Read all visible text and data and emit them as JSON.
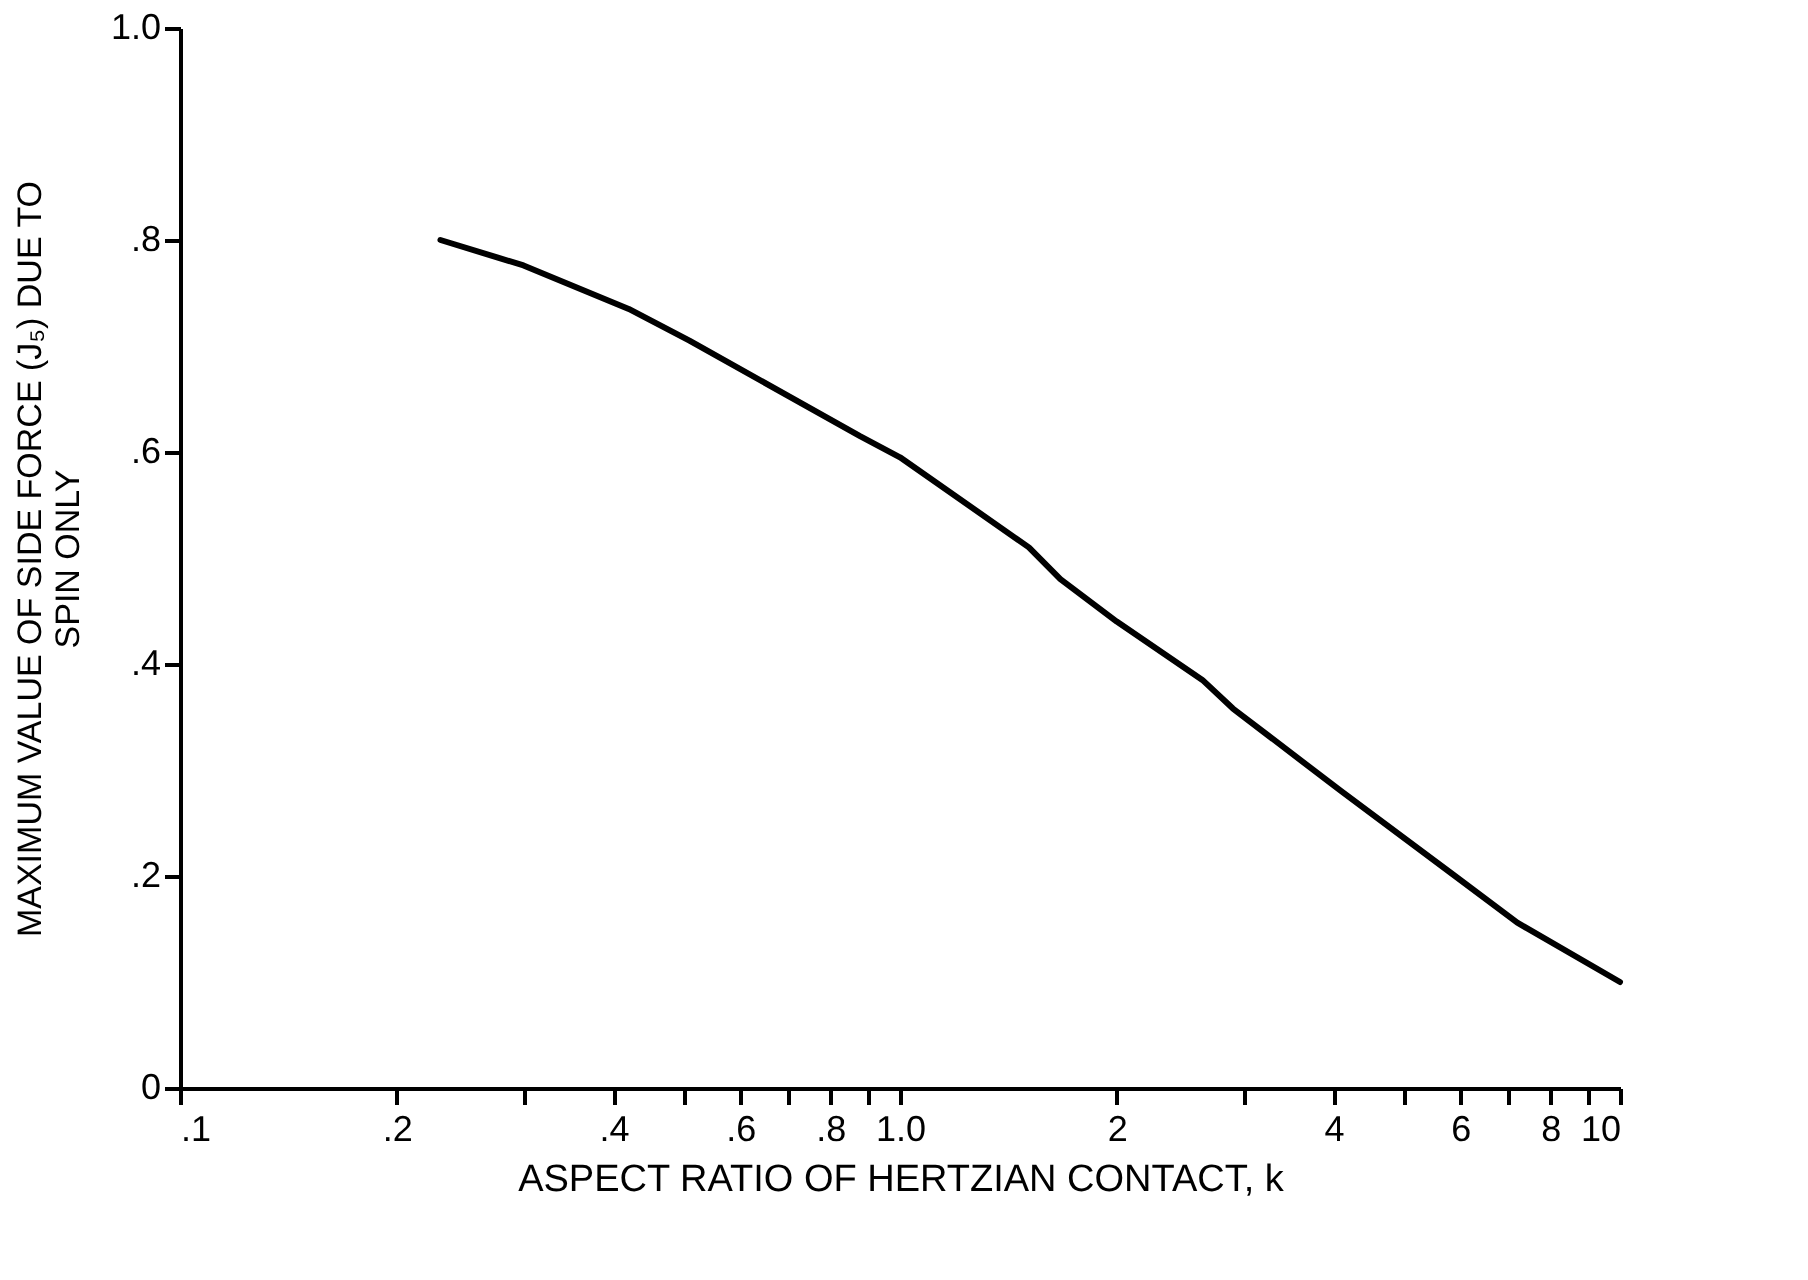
{
  "chart_data": {
    "type": "line",
    "xlabel": "ASPECT RATIO OF HERTZIAN CONTACT, k",
    "ylabel": "MAXIMUM VALUE OF SIDE FORCE (J₅) DUE TO\nSPIN ONLY",
    "log": "x",
    "x": [
      0.23,
      0.3,
      0.42,
      0.51,
      0.88,
      1.0,
      1.51,
      1.67,
      2.0,
      2.63,
      2.9,
      4.1,
      5.9,
      7.2,
      10
    ],
    "series": [
      {
        "color": "#000000",
        "values": [
          0.8,
          0.776,
          0.735,
          0.705,
          0.615,
          0.595,
          0.51,
          0.48,
          0.44,
          0.385,
          0.358,
          0.28,
          0.2,
          0.156,
          0.1
        ]
      }
    ],
    "xlim": [
      0.1,
      10
    ],
    "ylim": [
      0,
      1.0
    ],
    "xticks": [
      {
        "value": 0.1,
        "label": ".1"
      },
      {
        "value": 0.2,
        "label": ".2"
      },
      {
        "value": 0.3,
        "label": null
      },
      {
        "value": 0.4,
        "label": ".4"
      },
      {
        "value": 0.5,
        "label": null
      },
      {
        "value": 0.6,
        "label": ".6"
      },
      {
        "value": 0.7,
        "label": null
      },
      {
        "value": 0.8,
        "label": ".8"
      },
      {
        "value": 0.9,
        "label": null
      },
      {
        "value": 1,
        "label": "1.0"
      },
      2,
      {
        "value": 3,
        "label": null
      },
      4,
      {
        "value": 5,
        "label": null
      },
      6,
      {
        "value": 7,
        "label": null
      },
      8,
      {
        "value": 9,
        "label": null
      },
      10
    ],
    "yticks": [
      0,
      {
        "value": 0.2,
        "label": ".2"
      },
      {
        "value": 0.4,
        "label": ".4"
      },
      {
        "value": 0.6,
        "label": ".6"
      },
      {
        "value": 0.8,
        "label": ".8"
      },
      {
        "value": 1.0,
        "label": "1.0"
      }
    ],
    "grid": false,
    "legend": false,
    "marker": "none",
    "line_style": "solid"
  }
}
